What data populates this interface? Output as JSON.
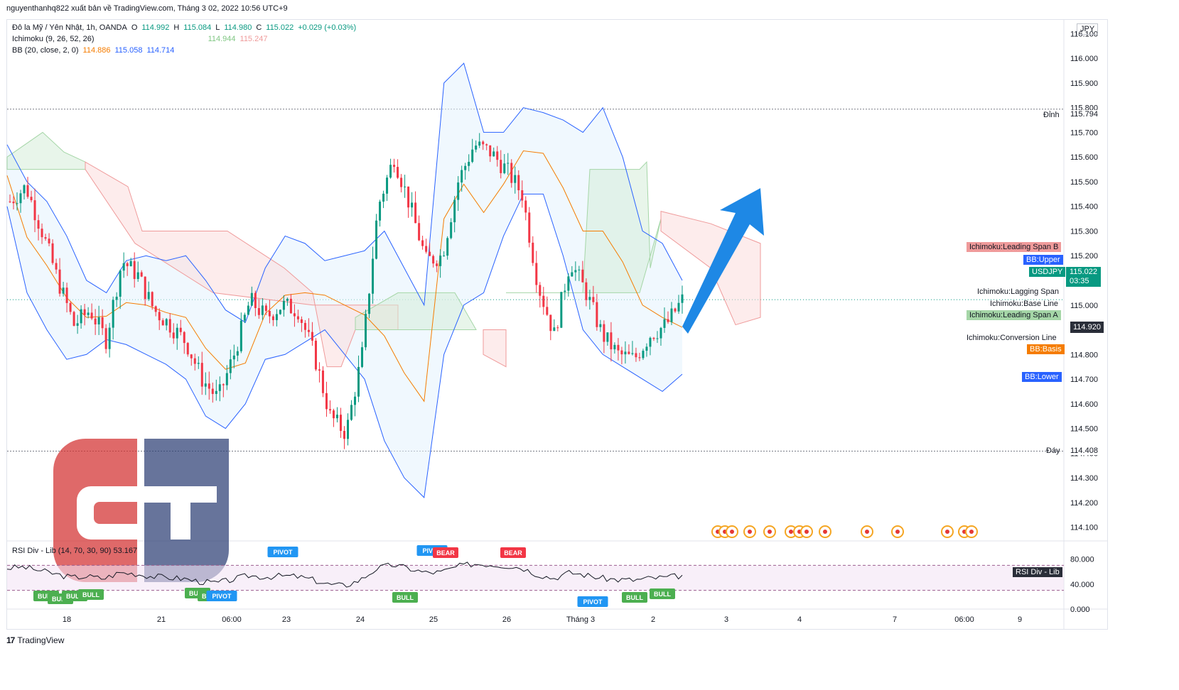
{
  "header": {
    "text": "nguyenthanhq822 xuất bản về TradingView.com, Tháng 3 02, 2022 10:56 UTC+9"
  },
  "legend": {
    "symbol": "Đô la Mỹ / Yên Nhật, 1h, OANDA",
    "o_label": "O",
    "o": "114.992",
    "h_label": "H",
    "h": "115.084",
    "l_label": "L",
    "l": "114.980",
    "c_label": "C",
    "c": "115.022",
    "change": "+0.029 (+0.03%)",
    "ichimoku": "Ichimoku (9, 26, 52, 26)",
    "ichi_v1": "114.944",
    "ichi_v2": "115.247",
    "bb": "BB (20, close, 2, 0)",
    "bb_v1": "114.886",
    "bb_v2": "115.058",
    "bb_v3": "114.714"
  },
  "rsi_legend": "RSI Div - Lib (14, 70, 30, 90)  53.167",
  "currency": "JPY",
  "right_labels": {
    "dinh": "Đỉnh",
    "dinh_val": "115.794",
    "day": "Đáy",
    "day_val": "114.408",
    "leading_b": "Ichimoku:Leading Span B",
    "bb_upper": "BB:Upper",
    "usdjpy": "USDJPY",
    "price": "115.022",
    "countdown": "03:35",
    "lagging": "Ichimoku:Lagging Span",
    "base": "Ichimoku:Base Line",
    "leading_a": "Ichimoku:Leading Span A",
    "price2": "114.920",
    "conversion": "Ichimoku:Conversion Line",
    "bb_basis": "BB:Basis",
    "bb_lower": "BB:Lower",
    "rsi_tag": "RSI Div - Lib"
  },
  "colors": {
    "up": "#089981",
    "down": "#f23645",
    "bb": "#2962ff",
    "basis": "#f57c00",
    "cloud_green": "#d6ecd9",
    "cloud_red": "#fbdcdc"
  },
  "footer": {
    "logo": "17",
    "brand": "TradingView"
  },
  "watermark_icon": "ct-logo",
  "chart_data": {
    "type": "candlestick",
    "title": "",
    "ylim": [
      114.05,
      116.15
    ],
    "y_ticks": [
      "116.100",
      "116.000",
      "115.900",
      "115.800",
      "115.700",
      "115.600",
      "115.500",
      "115.400",
      "115.300",
      "115.200",
      "115.100",
      "115.000",
      "114.900",
      "114.800",
      "114.700",
      "114.600",
      "114.500",
      "114.400",
      "114.300",
      "114.200",
      "114.100"
    ],
    "x_ticks": [
      "18",
      "21",
      "06:00",
      "23",
      "24",
      "25",
      "26",
      "Tháng 3",
      "2",
      "3",
      "4",
      "7",
      "06:00",
      "9"
    ],
    "close_path": [
      115.42,
      115.48,
      115.3,
      115.1,
      114.92,
      114.98,
      114.86,
      115.18,
      115.12,
      114.98,
      114.92,
      114.85,
      114.7,
      114.62,
      114.8,
      115.02,
      114.95,
      115.0,
      114.98,
      114.8,
      114.55,
      114.48,
      114.8,
      115.4,
      115.6,
      115.4,
      115.18,
      115.2,
      115.5,
      115.65,
      115.62,
      115.55,
      115.45,
      115.08,
      114.88,
      115.18,
      115.05,
      114.88,
      114.8,
      114.78,
      114.88,
      114.92,
      115.02
    ],
    "bb_upper_path": [
      115.65,
      115.5,
      115.42,
      115.28,
      115.1,
      115.05,
      115.18,
      115.2,
      115.18,
      115.2,
      115.1,
      114.98,
      114.93,
      115.15,
      115.28,
      115.25,
      115.18,
      115.2,
      115.22,
      115.3,
      115.15,
      115.0,
      115.9,
      115.98,
      115.7,
      115.7,
      115.8,
      115.78,
      115.75,
      115.7,
      115.8,
      115.6,
      115.3,
      115.25,
      115.1
    ],
    "bb_lower_path": [
      115.4,
      115.05,
      114.9,
      114.78,
      114.8,
      114.86,
      114.84,
      114.8,
      114.76,
      114.7,
      114.55,
      114.5,
      114.6,
      114.78,
      114.8,
      114.85,
      114.9,
      114.8,
      114.7,
      114.45,
      114.3,
      114.22,
      114.8,
      115.0,
      115.05,
      115.28,
      115.45,
      115.45,
      115.2,
      114.9,
      114.8,
      114.75,
      114.7,
      114.65,
      114.72
    ],
    "rsi": {
      "ylim": [
        0,
        100
      ],
      "ticks": [
        "80.000",
        "40.000",
        "0.000"
      ],
      "overbought": 70,
      "oversold": 30,
      "last": 53.167,
      "signals": [
        {
          "label": "BULL",
          "type": "bull"
        },
        {
          "label": "BULL",
          "type": "bull"
        },
        {
          "label": "BULL",
          "type": "bull"
        },
        {
          "label": "BULL",
          "type": "bull"
        },
        {
          "label": "BULL",
          "type": "bull"
        },
        {
          "label": "BULL",
          "type": "bull"
        },
        {
          "label": "PIVOT",
          "type": "pivot"
        },
        {
          "label": "PIVOT",
          "type": "pivot"
        },
        {
          "label": "BULL",
          "type": "bull"
        },
        {
          "label": "PIVOT",
          "type": "pivot"
        },
        {
          "label": "BEAR",
          "type": "bear"
        },
        {
          "label": "BEAR",
          "type": "bear"
        },
        {
          "label": "PIVOT",
          "type": "pivot"
        },
        {
          "label": "BULL",
          "type": "bull"
        },
        {
          "label": "BULL",
          "type": "bull"
        }
      ]
    }
  }
}
